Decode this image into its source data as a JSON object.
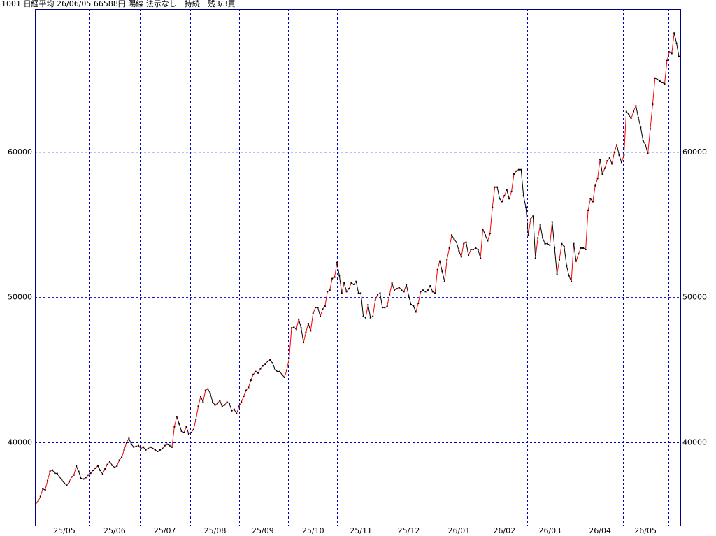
{
  "chart_data": {
    "type": "line",
    "title": "1001 日経平均 26/06/05 66588円 陽線 法示なし　持続　残3/3買",
    "categories": [
      null,
      null,
      null,
      null,
      null,
      null,
      null,
      null,
      null,
      null,
      null,
      null,
      "25/05",
      null,
      null,
      null,
      null,
      null,
      null,
      null,
      null,
      null,
      null,
      null,
      null,
      null,
      null,
      null,
      null,
      null,
      null,
      null,
      null,
      "25/06",
      null,
      null,
      null,
      null,
      null,
      null,
      null,
      null,
      null,
      null,
      null,
      null,
      null,
      null,
      null,
      null,
      null,
      null,
      null,
      null,
      "25/07",
      null,
      null,
      null,
      null,
      null,
      null,
      null,
      null,
      null,
      null,
      null,
      null,
      null,
      null,
      null,
      null,
      null,
      null,
      null,
      null,
      "25/08",
      null,
      null,
      null,
      null,
      null,
      null,
      null,
      null,
      null,
      null,
      null,
      null,
      null,
      null,
      null,
      null,
      null,
      null,
      null,
      "25/09",
      null,
      null,
      null,
      null,
      null,
      null,
      null,
      null,
      null,
      null,
      null,
      null,
      null,
      null,
      null,
      null,
      null,
      null,
      null,
      null,
      "25/10",
      null,
      null,
      null,
      null,
      null,
      null,
      null,
      null,
      null,
      null,
      null,
      null,
      null,
      null,
      null,
      null,
      null,
      null,
      null,
      "25/11",
      null,
      null,
      null,
      null,
      null,
      null,
      null,
      null,
      null,
      null,
      null,
      null,
      null,
      null,
      null,
      null,
      null,
      null,
      null,
      "25/12",
      null,
      null,
      null,
      null,
      null,
      null,
      null,
      null,
      null,
      null,
      null,
      null,
      null,
      null,
      null,
      null,
      null,
      null,
      null,
      null,
      "26/01",
      null,
      null,
      null,
      null,
      null,
      null,
      null,
      null,
      null,
      null,
      null,
      null,
      null,
      null,
      null,
      null,
      null,
      null,
      "26/02",
      null,
      null,
      null,
      null,
      null,
      null,
      null,
      null,
      null,
      null,
      null,
      null,
      null,
      null,
      null,
      null,
      null,
      null,
      "26/03",
      null,
      null,
      null,
      null,
      null,
      null,
      null,
      null,
      null,
      null,
      null,
      null,
      null,
      null,
      null,
      null,
      null,
      null,
      null,
      null,
      "26/04",
      null,
      null,
      null,
      null,
      null,
      null,
      null,
      null,
      null,
      null,
      null,
      null,
      null,
      null,
      null,
      null,
      null,
      null,
      "26/05",
      null,
      null,
      null,
      null,
      null,
      null,
      null,
      null,
      null,
      null,
      null,
      null,
      null,
      null
    ],
    "series": [
      {
        "color": "#000000",
        "up_color": "#ff0000",
        "values": [
          35770,
          35950,
          36300,
          36820,
          36750,
          37400,
          38030,
          38120,
          37900,
          37880,
          37640,
          37400,
          37210,
          37070,
          37300,
          37640,
          37780,
          38400,
          38020,
          37530,
          37500,
          37600,
          37780,
          37900,
          38100,
          38250,
          38400,
          38100,
          37850,
          38200,
          38500,
          38700,
          38450,
          38300,
          38400,
          38800,
          39000,
          39500,
          40000,
          40300,
          39900,
          39700,
          39750,
          39800,
          39600,
          39700,
          39500,
          39600,
          39700,
          39600,
          39500,
          39400,
          39500,
          39600,
          39800,
          39900,
          39800,
          39700,
          41100,
          41800,
          41300,
          40800,
          40700,
          41100,
          40600,
          40700,
          40900,
          41600,
          42500,
          43200,
          42800,
          43600,
          43700,
          43400,
          42800,
          42600,
          42700,
          42900,
          42500,
          42600,
          42800,
          42700,
          42200,
          42300,
          42000,
          42500,
          42800,
          43200,
          43600,
          43800,
          44300,
          44700,
          44900,
          44800,
          45100,
          45300,
          45400,
          45600,
          45700,
          45500,
          45100,
          44900,
          44900,
          44700,
          44500,
          45000,
          45800,
          47900,
          47950,
          47800,
          48500,
          47900,
          46900,
          47600,
          48200,
          47700,
          48900,
          49300,
          49300,
          48700,
          49200,
          49400,
          50400,
          50500,
          51300,
          51400,
          52400,
          51500,
          50300,
          51000,
          50400,
          50600,
          51000,
          50900,
          51100,
          50300,
          50300,
          48700,
          48600,
          49500,
          48600,
          48700,
          49800,
          50200,
          50300,
          49300,
          49300,
          49400,
          50200,
          51000,
          50500,
          50600,
          50700,
          50500,
          50400,
          50900,
          50100,
          49500,
          49400,
          49000,
          49600,
          50400,
          50500,
          50400,
          50500,
          50800,
          50400,
          50300,
          51900,
          52500,
          51800,
          51100,
          52600,
          53400,
          54300,
          54000,
          53800,
          53200,
          52800,
          53700,
          53800,
          52900,
          53300,
          53300,
          53400,
          53300,
          52700,
          54700,
          54300,
          53900,
          54400,
          56200,
          57600,
          57600,
          56800,
          56600,
          57000,
          57400,
          56800,
          57300,
          58500,
          58700,
          58800,
          58800,
          57000,
          56200,
          54300,
          55400,
          55600,
          52700,
          54100,
          55000,
          54100,
          53700,
          53700,
          53600,
          55200,
          53400,
          51600,
          52600,
          53700,
          53500,
          52200,
          51500,
          51100,
          53700,
          52500,
          53000,
          53400,
          53400,
          53300,
          56000,
          56800,
          56600,
          57700,
          58200,
          59500,
          58500,
          58900,
          59400,
          59600,
          59200,
          60000,
          60500,
          59800,
          59300,
          59800,
          62800,
          62600,
          62300,
          62800,
          63200,
          62400,
          61700,
          60800,
          60500,
          59900,
          61600,
          63300,
          65100,
          65000,
          64900,
          64800,
          64700,
          66300,
          66900,
          66800,
          68200,
          67500,
          66588
        ]
      }
    ],
    "ylim": [
      34300,
      69850
    ],
    "yticks": [
      40000,
      50000,
      60000
    ],
    "grid": true
  }
}
